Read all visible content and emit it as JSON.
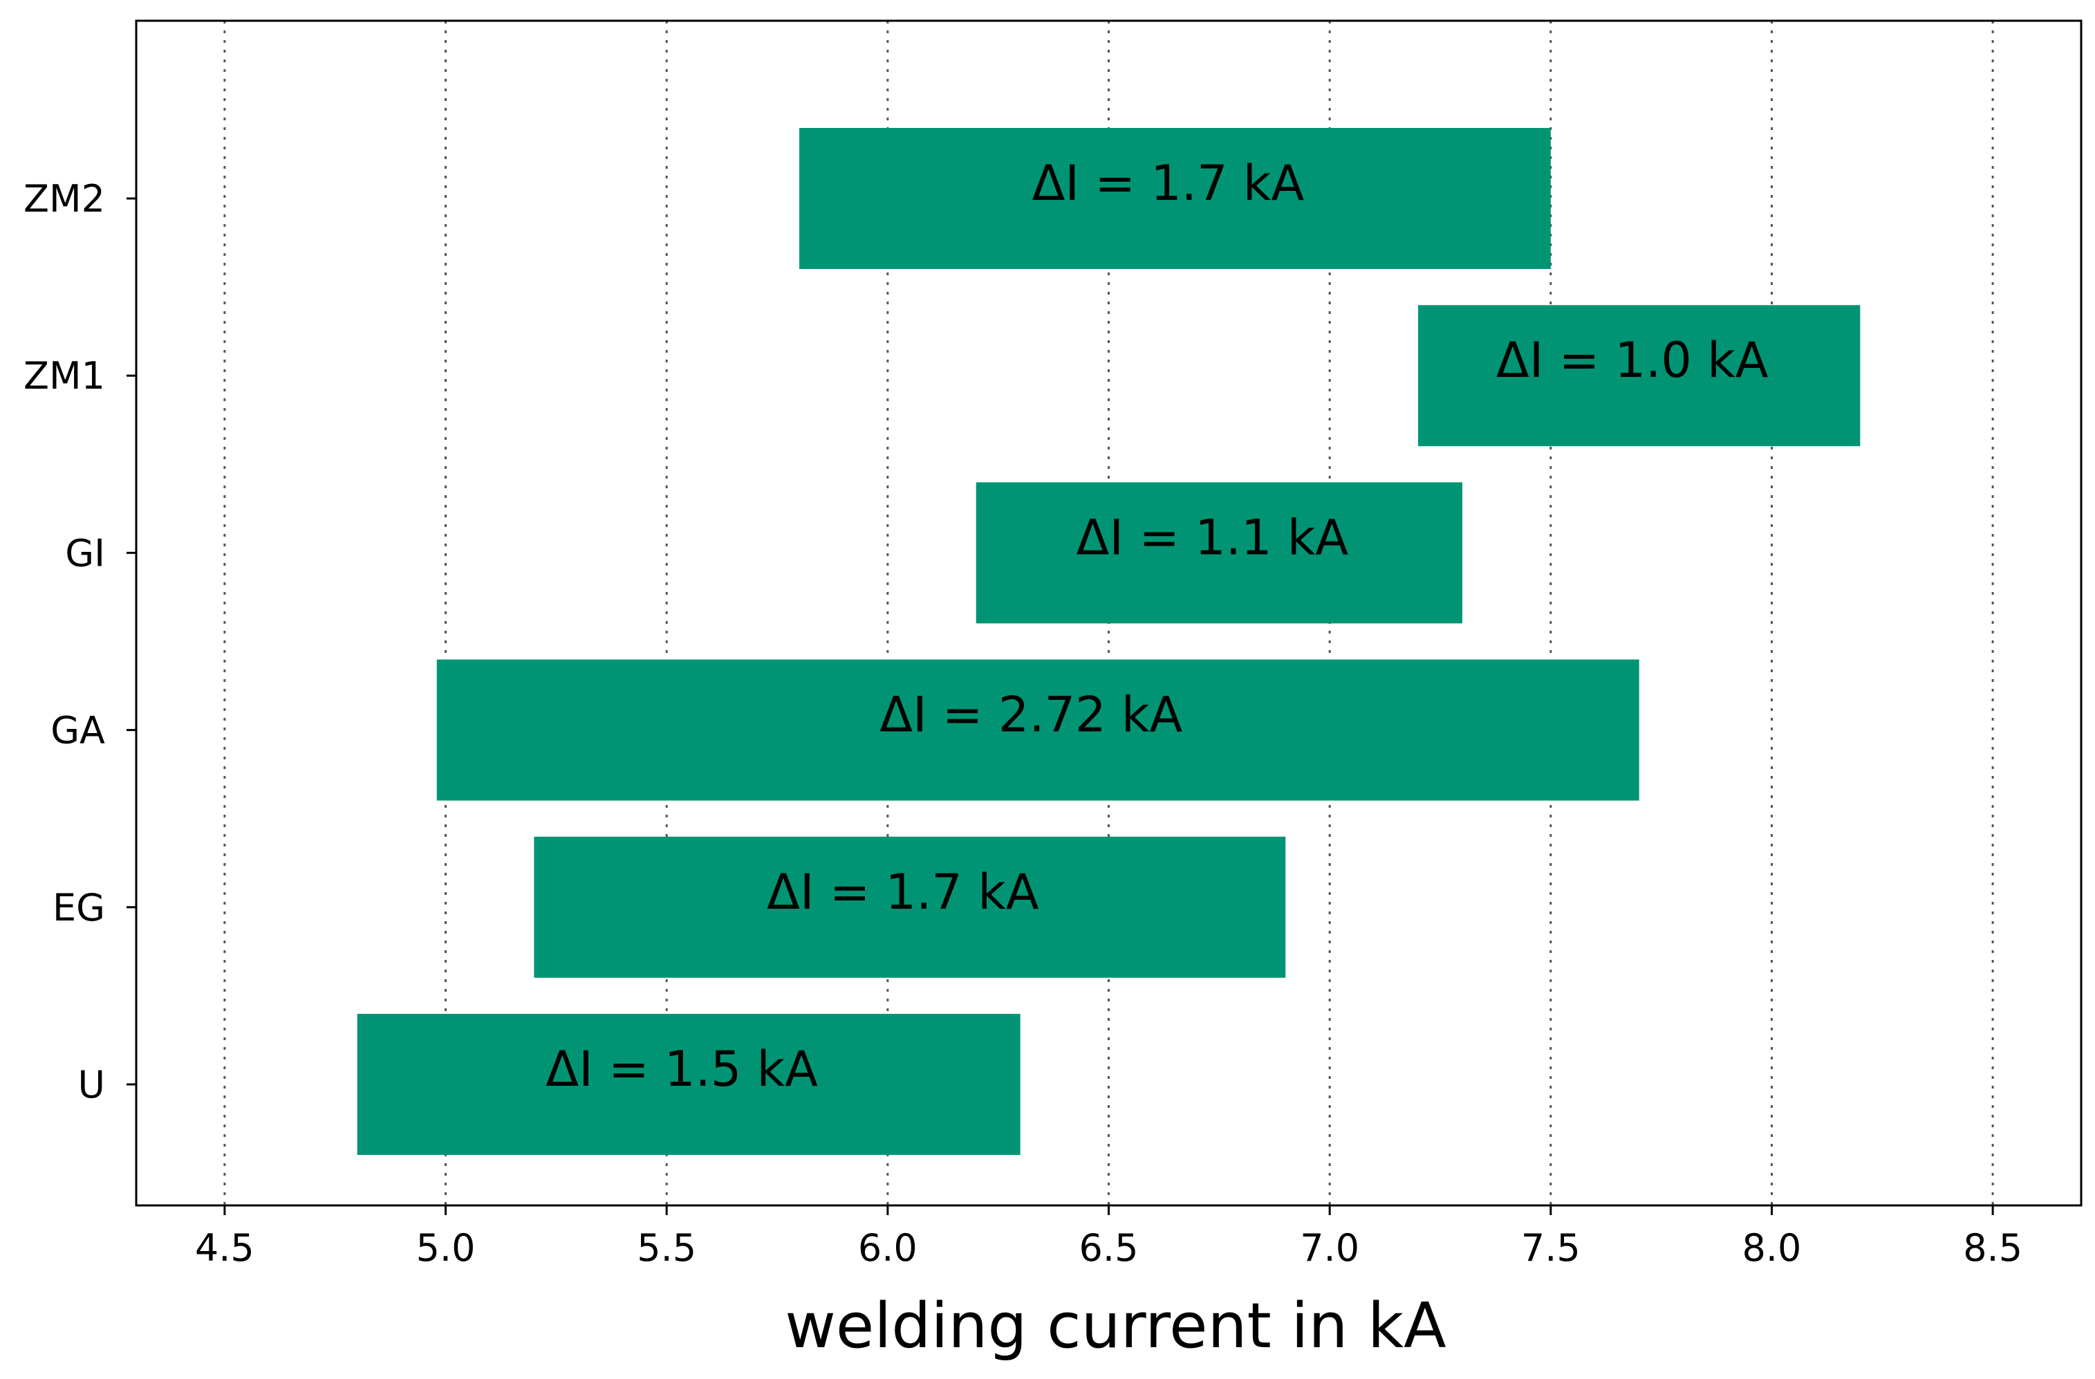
{
  "chart_data": {
    "type": "bar",
    "orientation": "horizontal",
    "title": "",
    "xlabel": "welding current in kA",
    "ylabel": "",
    "xlim": [
      4.3,
      8.7
    ],
    "x_ticks": [
      4.5,
      5.0,
      5.5,
      6.0,
      6.5,
      7.0,
      7.5,
      8.0,
      8.5
    ],
    "x_tick_labels": [
      "4.5",
      "5.0",
      "5.5",
      "6.0",
      "6.5",
      "7.0",
      "7.5",
      "8.0",
      "8.5"
    ],
    "grid": "x-dotted",
    "bar_color": "#009474",
    "categories": [
      "U",
      "EG",
      "GA",
      "GI",
      "ZM1",
      "ZM2"
    ],
    "series": [
      {
        "name": "welding current range",
        "ranges": [
          {
            "category": "U",
            "start": 4.8,
            "end": 6.3,
            "label": "ΔI = 1.5 kA"
          },
          {
            "category": "EG",
            "start": 5.2,
            "end": 6.9,
            "label": "ΔI = 1.7 kA"
          },
          {
            "category": "GA",
            "start": 4.98,
            "end": 7.7,
            "label": "ΔI = 2.72 kA"
          },
          {
            "category": "GI",
            "start": 6.2,
            "end": 7.3,
            "label": "ΔI = 1.1 kA"
          },
          {
            "category": "ZM1",
            "start": 7.2,
            "end": 8.2,
            "label": "ΔI = 1.0 kA"
          },
          {
            "category": "ZM2",
            "start": 5.8,
            "end": 7.5,
            "label": "ΔI = 1.7 kA"
          }
        ]
      }
    ]
  }
}
